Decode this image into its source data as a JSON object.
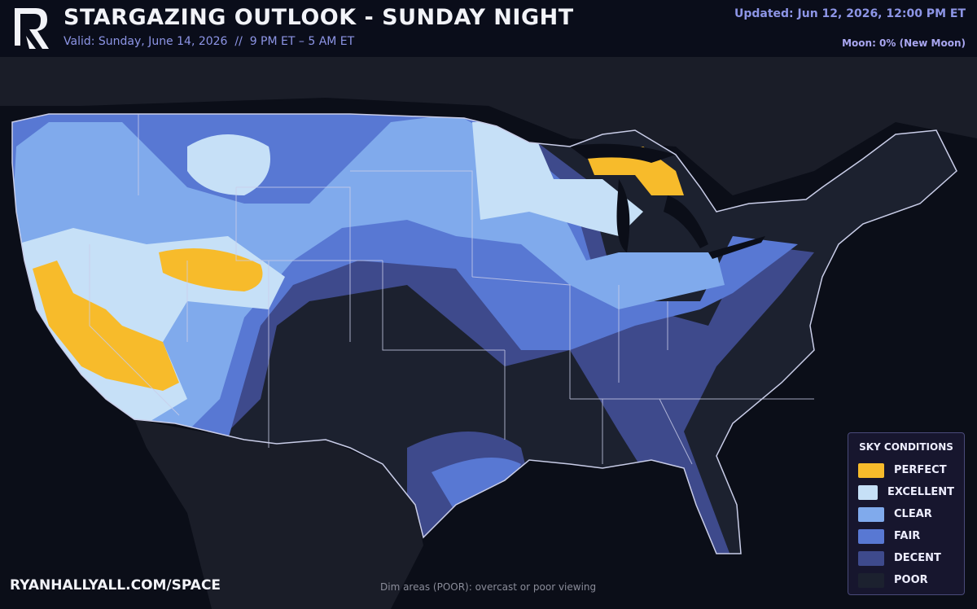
{
  "header": {
    "title": "STARGAZING OUTLOOK - SUNDAY NIGHT",
    "subtitle": "Valid: Sunday, June 14, 2026  //  9 PM ET – 5 AM ET",
    "updated": "Updated: Jun 12, 2026, 12:00 PM ET",
    "moon": "Moon: 0% (New Moon)"
  },
  "legend": {
    "title": "SKY CONDITIONS",
    "items": [
      {
        "label": "PERFECT",
        "color": "#f7bb2b"
      },
      {
        "label": "EXCELLENT",
        "color": "#c6e0f7"
      },
      {
        "label": "CLEAR",
        "color": "#80aaec"
      },
      {
        "label": "FAIR",
        "color": "#5878d3"
      },
      {
        "label": "DECENT",
        "color": "#3e4a8c"
      },
      {
        "label": "POOR",
        "color": "#1c212f"
      }
    ]
  },
  "footer": {
    "site": "RYANHALLYALL.COM/SPACE",
    "note": "Dim areas (POOR): overcast or poor viewing"
  }
}
